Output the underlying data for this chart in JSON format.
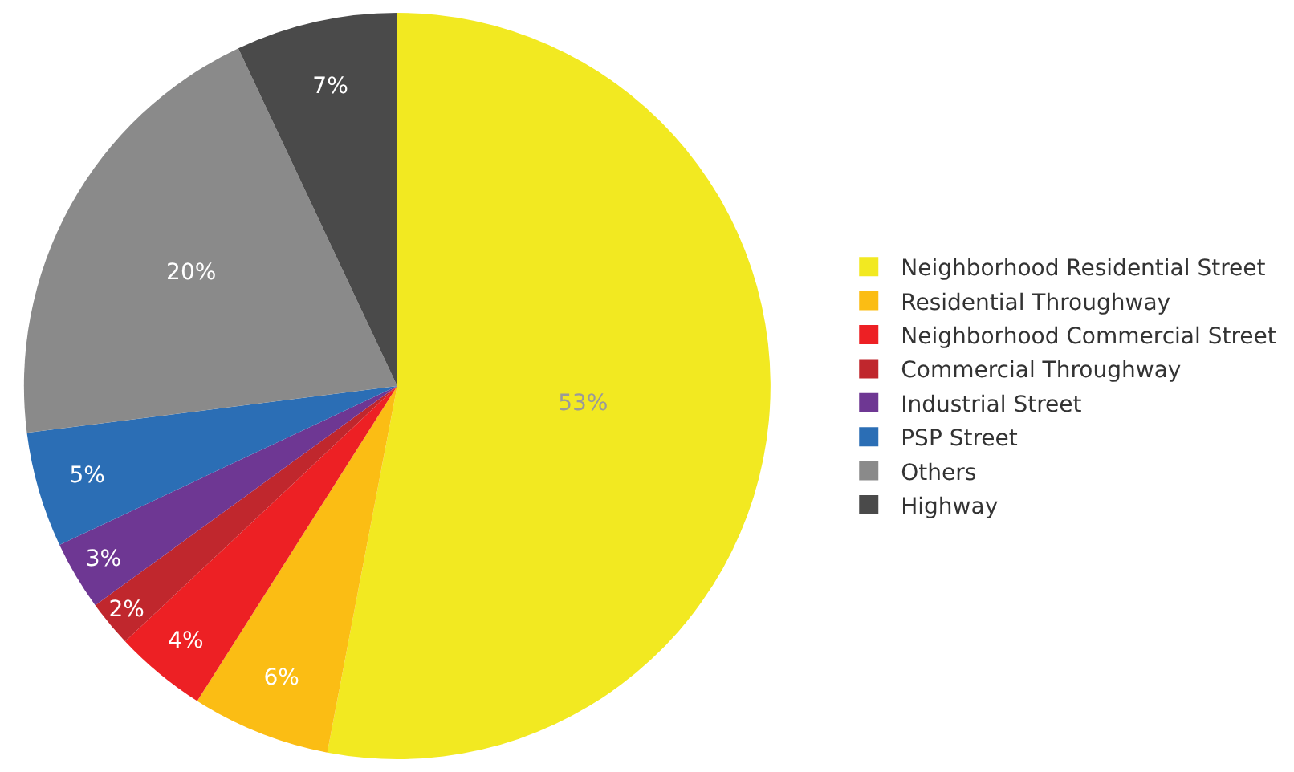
{
  "chart_data": {
    "type": "pie",
    "categories": [
      "Neighborhood Residential Street",
      "Residential Throughway",
      "Neighborhood Commercial Street",
      "Commercial Throughway",
      "Industrial Street",
      "PSP Street",
      "Others",
      "Highway"
    ],
    "values": [
      53,
      6,
      4,
      2,
      3,
      5,
      20,
      7
    ],
    "colors": [
      "#f2e921",
      "#fbbd14",
      "#ed2024",
      "#c0272d",
      "#6e3793",
      "#2b6eb5",
      "#8a8a8a",
      "#4a4a4a"
    ],
    "value_labels": [
      "53%",
      "6%",
      "4%",
      "2%",
      "3%",
      "5%",
      "20%",
      "7%"
    ],
    "legend": "right"
  }
}
